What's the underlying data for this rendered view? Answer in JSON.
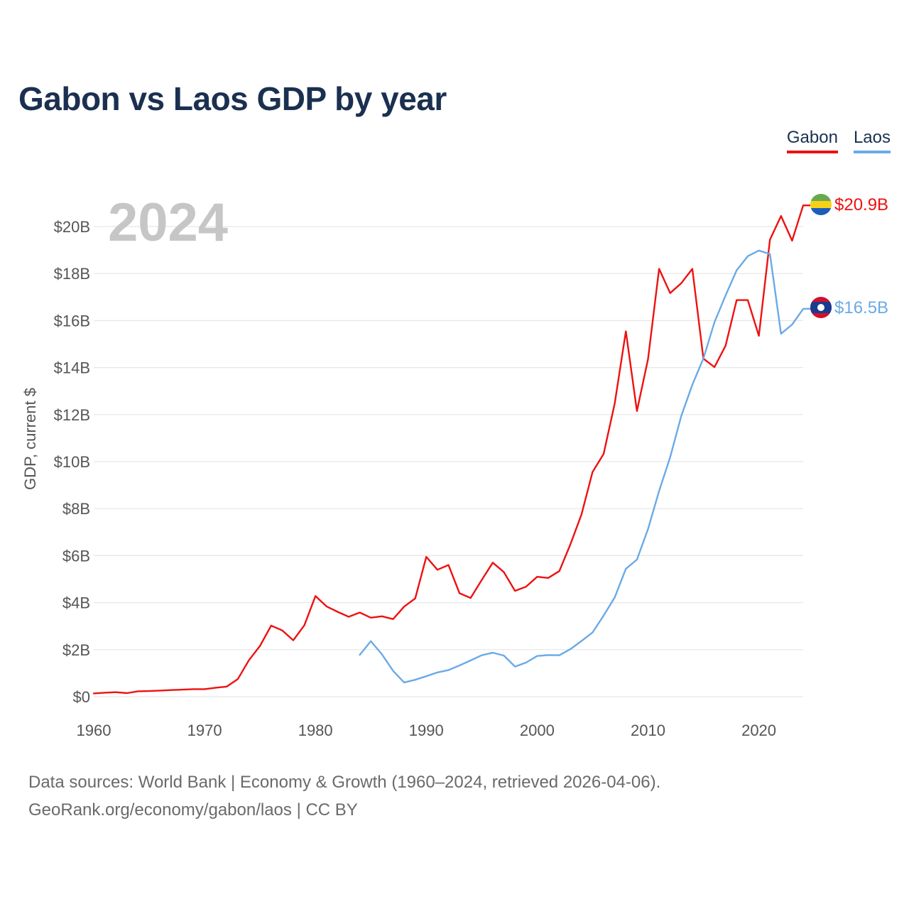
{
  "title": "Gabon vs Laos GDP by year",
  "legend": [
    {
      "label": "Gabon",
      "color": "#ee1111"
    },
    {
      "label": "Laos",
      "color": "#6aaae6"
    }
  ],
  "footer": {
    "line1": "Data sources: World Bank | Economy & Growth (1960–2024, retrieved 2026-04-06).",
    "line2": "GeoRank.org/economy/gabon/laos | CC BY"
  },
  "chart_data": {
    "type": "line",
    "title": "Gabon vs Laos GDP by year",
    "current_year": "2024",
    "xlabel": "",
    "ylabel": "GDP, current $",
    "xlim": [
      1960,
      2024
    ],
    "ylim": [
      0,
      20
    ],
    "x_ticks": [
      {
        "value": 1960,
        "label": "1960"
      },
      {
        "value": 1970,
        "label": "1970"
      },
      {
        "value": 1980,
        "label": "1980"
      },
      {
        "value": 1990,
        "label": "1990"
      },
      {
        "value": 2000,
        "label": "2000"
      },
      {
        "value": 2010,
        "label": "2010"
      },
      {
        "value": 2020,
        "label": "2020"
      }
    ],
    "y_ticks": [
      {
        "value": 0,
        "label": "$0"
      },
      {
        "value": 2,
        "label": "$2B"
      },
      {
        "value": 4,
        "label": "$4B"
      },
      {
        "value": 6,
        "label": "$6B"
      },
      {
        "value": 8,
        "label": "$8B"
      },
      {
        "value": 10,
        "label": "$10B"
      },
      {
        "value": 12,
        "label": "$12B"
      },
      {
        "value": 14,
        "label": "$14B"
      },
      {
        "value": 16,
        "label": "$16B"
      },
      {
        "value": 18,
        "label": "$18B"
      },
      {
        "value": 20,
        "label": "$20B"
      }
    ],
    "grid": true,
    "series": [
      {
        "name": "Gabon",
        "color": "#ee1111",
        "end_label": "$20.9B",
        "flag": "gabon",
        "x": [
          1960,
          1961,
          1962,
          1963,
          1964,
          1965,
          1966,
          1967,
          1968,
          1969,
          1970,
          1971,
          1972,
          1973,
          1974,
          1975,
          1976,
          1977,
          1978,
          1979,
          1980,
          1981,
          1982,
          1983,
          1984,
          1985,
          1986,
          1987,
          1988,
          1989,
          1990,
          1991,
          1992,
          1993,
          1994,
          1995,
          1996,
          1997,
          1998,
          1999,
          2000,
          2001,
          2002,
          2003,
          2004,
          2005,
          2006,
          2007,
          2008,
          2009,
          2010,
          2011,
          2012,
          2013,
          2014,
          2015,
          2016,
          2017,
          2018,
          2019,
          2020,
          2021,
          2022,
          2023,
          2024
        ],
        "values": [
          0.14,
          0.17,
          0.19,
          0.15,
          0.23,
          0.24,
          0.26,
          0.28,
          0.3,
          0.32,
          0.32,
          0.38,
          0.43,
          0.75,
          1.55,
          2.16,
          3.02,
          2.82,
          2.4,
          3.04,
          4.28,
          3.84,
          3.61,
          3.4,
          3.58,
          3.36,
          3.42,
          3.3,
          3.83,
          4.18,
          5.95,
          5.4,
          5.6,
          4.4,
          4.2,
          4.96,
          5.7,
          5.3,
          4.5,
          4.68,
          5.1,
          5.05,
          5.34,
          6.48,
          7.75,
          9.56,
          10.33,
          12.47,
          15.54,
          12.15,
          14.36,
          18.2,
          17.17,
          17.59,
          18.2,
          14.38,
          14.02,
          14.93,
          16.87,
          16.87,
          15.35,
          19.44,
          20.45,
          19.4,
          20.9
        ]
      },
      {
        "name": "Laos",
        "color": "#6aaae6",
        "end_label": "$16.5B",
        "flag": "laos",
        "x": [
          1984,
          1985,
          1986,
          1987,
          1988,
          1989,
          1990,
          1991,
          1992,
          1993,
          1994,
          1995,
          1996,
          1997,
          1998,
          1999,
          2000,
          2001,
          2002,
          2003,
          2004,
          2005,
          2006,
          2007,
          2008,
          2009,
          2010,
          2011,
          2012,
          2013,
          2014,
          2015,
          2016,
          2017,
          2018,
          2019,
          2020,
          2021,
          2022,
          2023,
          2024
        ],
        "values": [
          1.78,
          2.36,
          1.8,
          1.1,
          0.6,
          0.72,
          0.87,
          1.03,
          1.13,
          1.33,
          1.54,
          1.76,
          1.87,
          1.75,
          1.28,
          1.45,
          1.73,
          1.77,
          1.76,
          2.02,
          2.37,
          2.73,
          3.45,
          4.22,
          5.44,
          5.83,
          7.13,
          8.75,
          10.19,
          11.94,
          13.27,
          14.39,
          15.93,
          17.07,
          18.14,
          18.74,
          18.98,
          18.83,
          15.44,
          15.83,
          16.5
        ]
      }
    ]
  }
}
